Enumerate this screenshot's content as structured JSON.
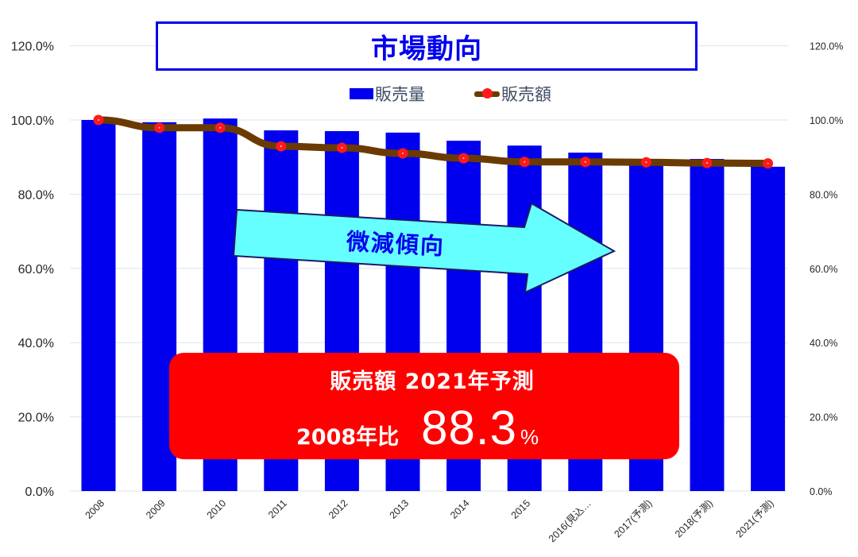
{
  "title": "市場動向",
  "legend": {
    "bar_label": "販売量",
    "line_label": "販売額"
  },
  "arrow_label": "微減傾向",
  "callout": {
    "line1": "販売額  2021年予測",
    "prefix": "2008年比",
    "value": "88.3",
    "unit": "%"
  },
  "colors": {
    "bar": "#0000ee",
    "line": "#6b3a00",
    "marker": "#ff1a1a",
    "arrow_fill": "#66ffff",
    "arrow_stroke": "#1a1a66",
    "callout_bg": "#ff0000",
    "gridline": "#dde3ef"
  },
  "chart_data": {
    "type": "bar",
    "title": "市場動向",
    "xlabel": "",
    "ylabel": "",
    "ylim": [
      0,
      120
    ],
    "y2lim": [
      0,
      120
    ],
    "grid": true,
    "legend_position": "top",
    "y_ticks": [
      "0.0%",
      "20.0%",
      "40.0%",
      "60.0%",
      "80.0%",
      "100.0%",
      "120.0%"
    ],
    "y2_ticks": [
      "0.0%",
      "20.0%",
      "40.0%",
      "60.0%",
      "80.0%",
      "100.0%",
      "120.0%"
    ],
    "categories": [
      "2008",
      "2009",
      "2010",
      "2011",
      "2012",
      "2013",
      "2014",
      "2015",
      "2016(見込…",
      "2017(予測)",
      "2018(予測)",
      "2021(予測)"
    ],
    "series": [
      {
        "name": "販売量",
        "type": "bar",
        "axis": "left",
        "values": [
          100.0,
          99.4,
          100.4,
          97.2,
          97.0,
          96.6,
          94.4,
          93.1,
          91.2,
          89.5,
          89.5,
          87.4
        ]
      },
      {
        "name": "販売額",
        "type": "line",
        "axis": "right",
        "values": [
          100.0,
          97.9,
          97.9,
          92.9,
          92.5,
          91.0,
          89.7,
          88.7,
          88.7,
          88.6,
          88.4,
          88.3
        ]
      }
    ],
    "annotations": [
      "微減傾向",
      "販売額 2021年予測 2008年比 88.3%"
    ]
  }
}
